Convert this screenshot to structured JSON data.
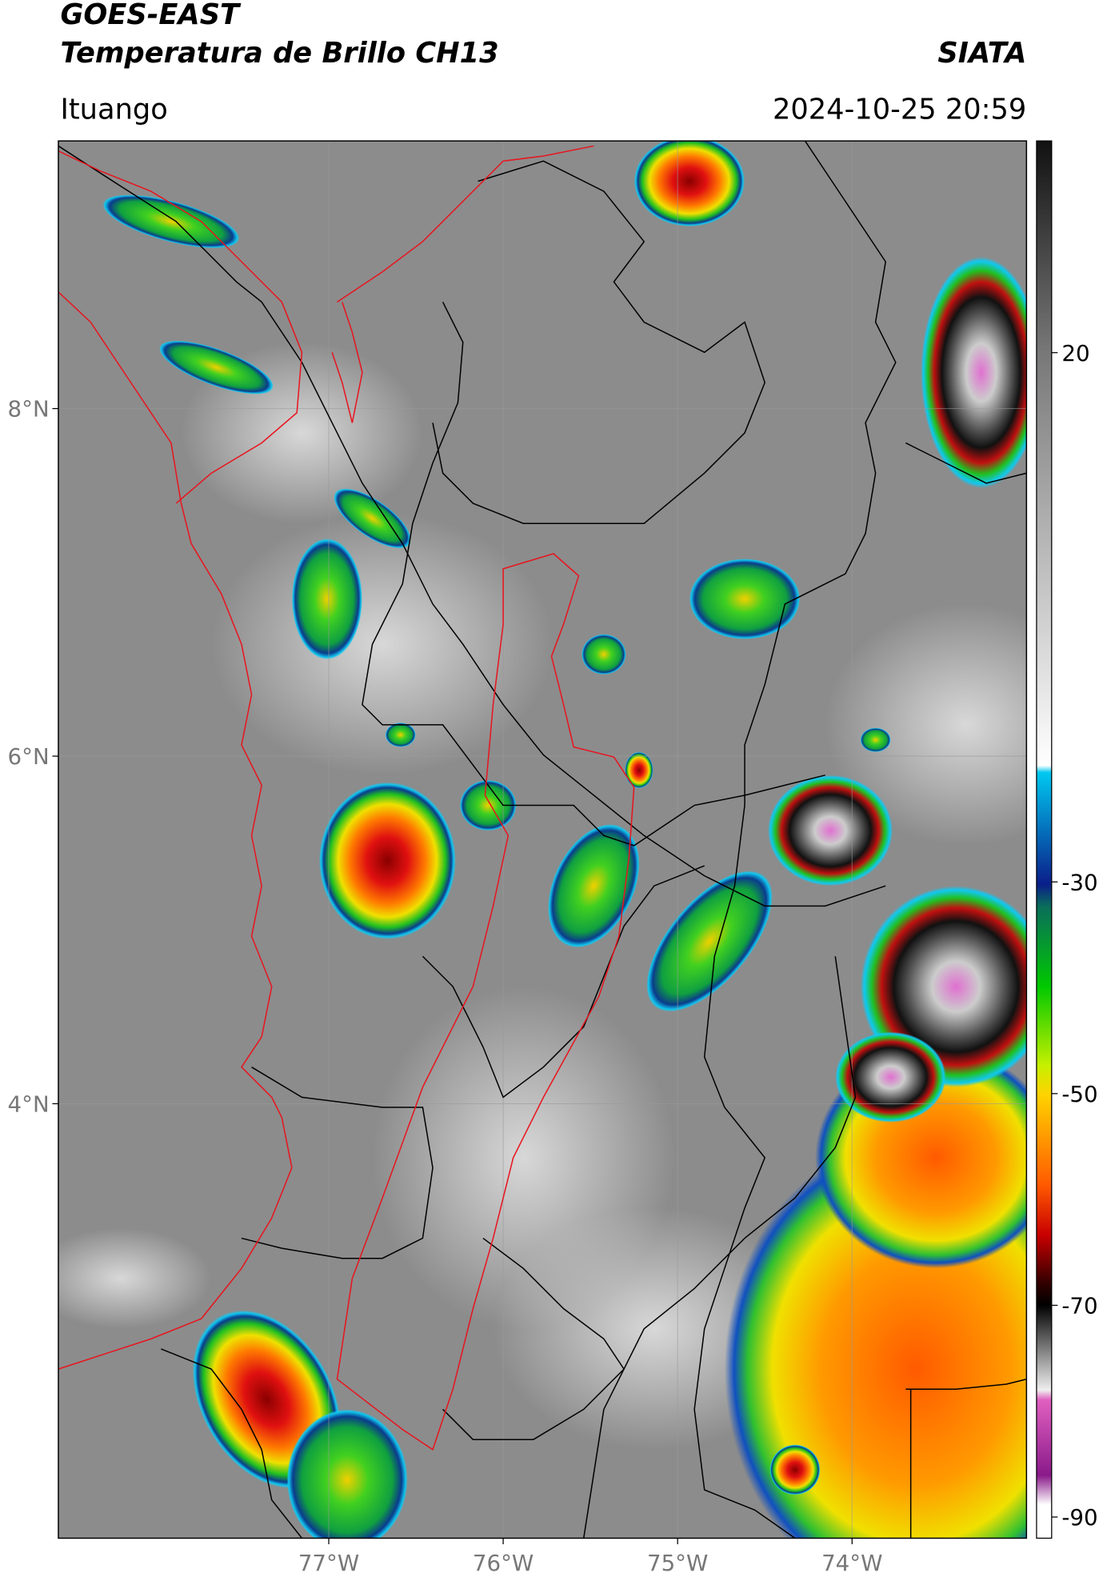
{
  "header": {
    "satellite": "GOES-EAST",
    "product": "Temperatura de Brillo CH13",
    "agency": "SIATA",
    "location": "Ituango",
    "datetime": "2024-10-25 20:59"
  },
  "map": {
    "lon_range": [
      -78.55,
      -73.0
    ],
    "lat_range": [
      1.5,
      9.54
    ],
    "lat_ticks": [
      {
        "value": 8,
        "label": "8°N"
      },
      {
        "value": 6,
        "label": "6°N"
      },
      {
        "value": 4,
        "label": "4°N"
      }
    ],
    "lon_ticks": [
      {
        "value": -77,
        "label": "77°W"
      },
      {
        "value": -76,
        "label": "76°W"
      },
      {
        "value": -75,
        "label": "75°W"
      },
      {
        "value": -74,
        "label": "74°W"
      }
    ]
  },
  "colorbar": {
    "range": [
      -92,
      40
    ],
    "ticks": [
      20,
      -30,
      -50,
      -70,
      -90
    ]
  }
}
